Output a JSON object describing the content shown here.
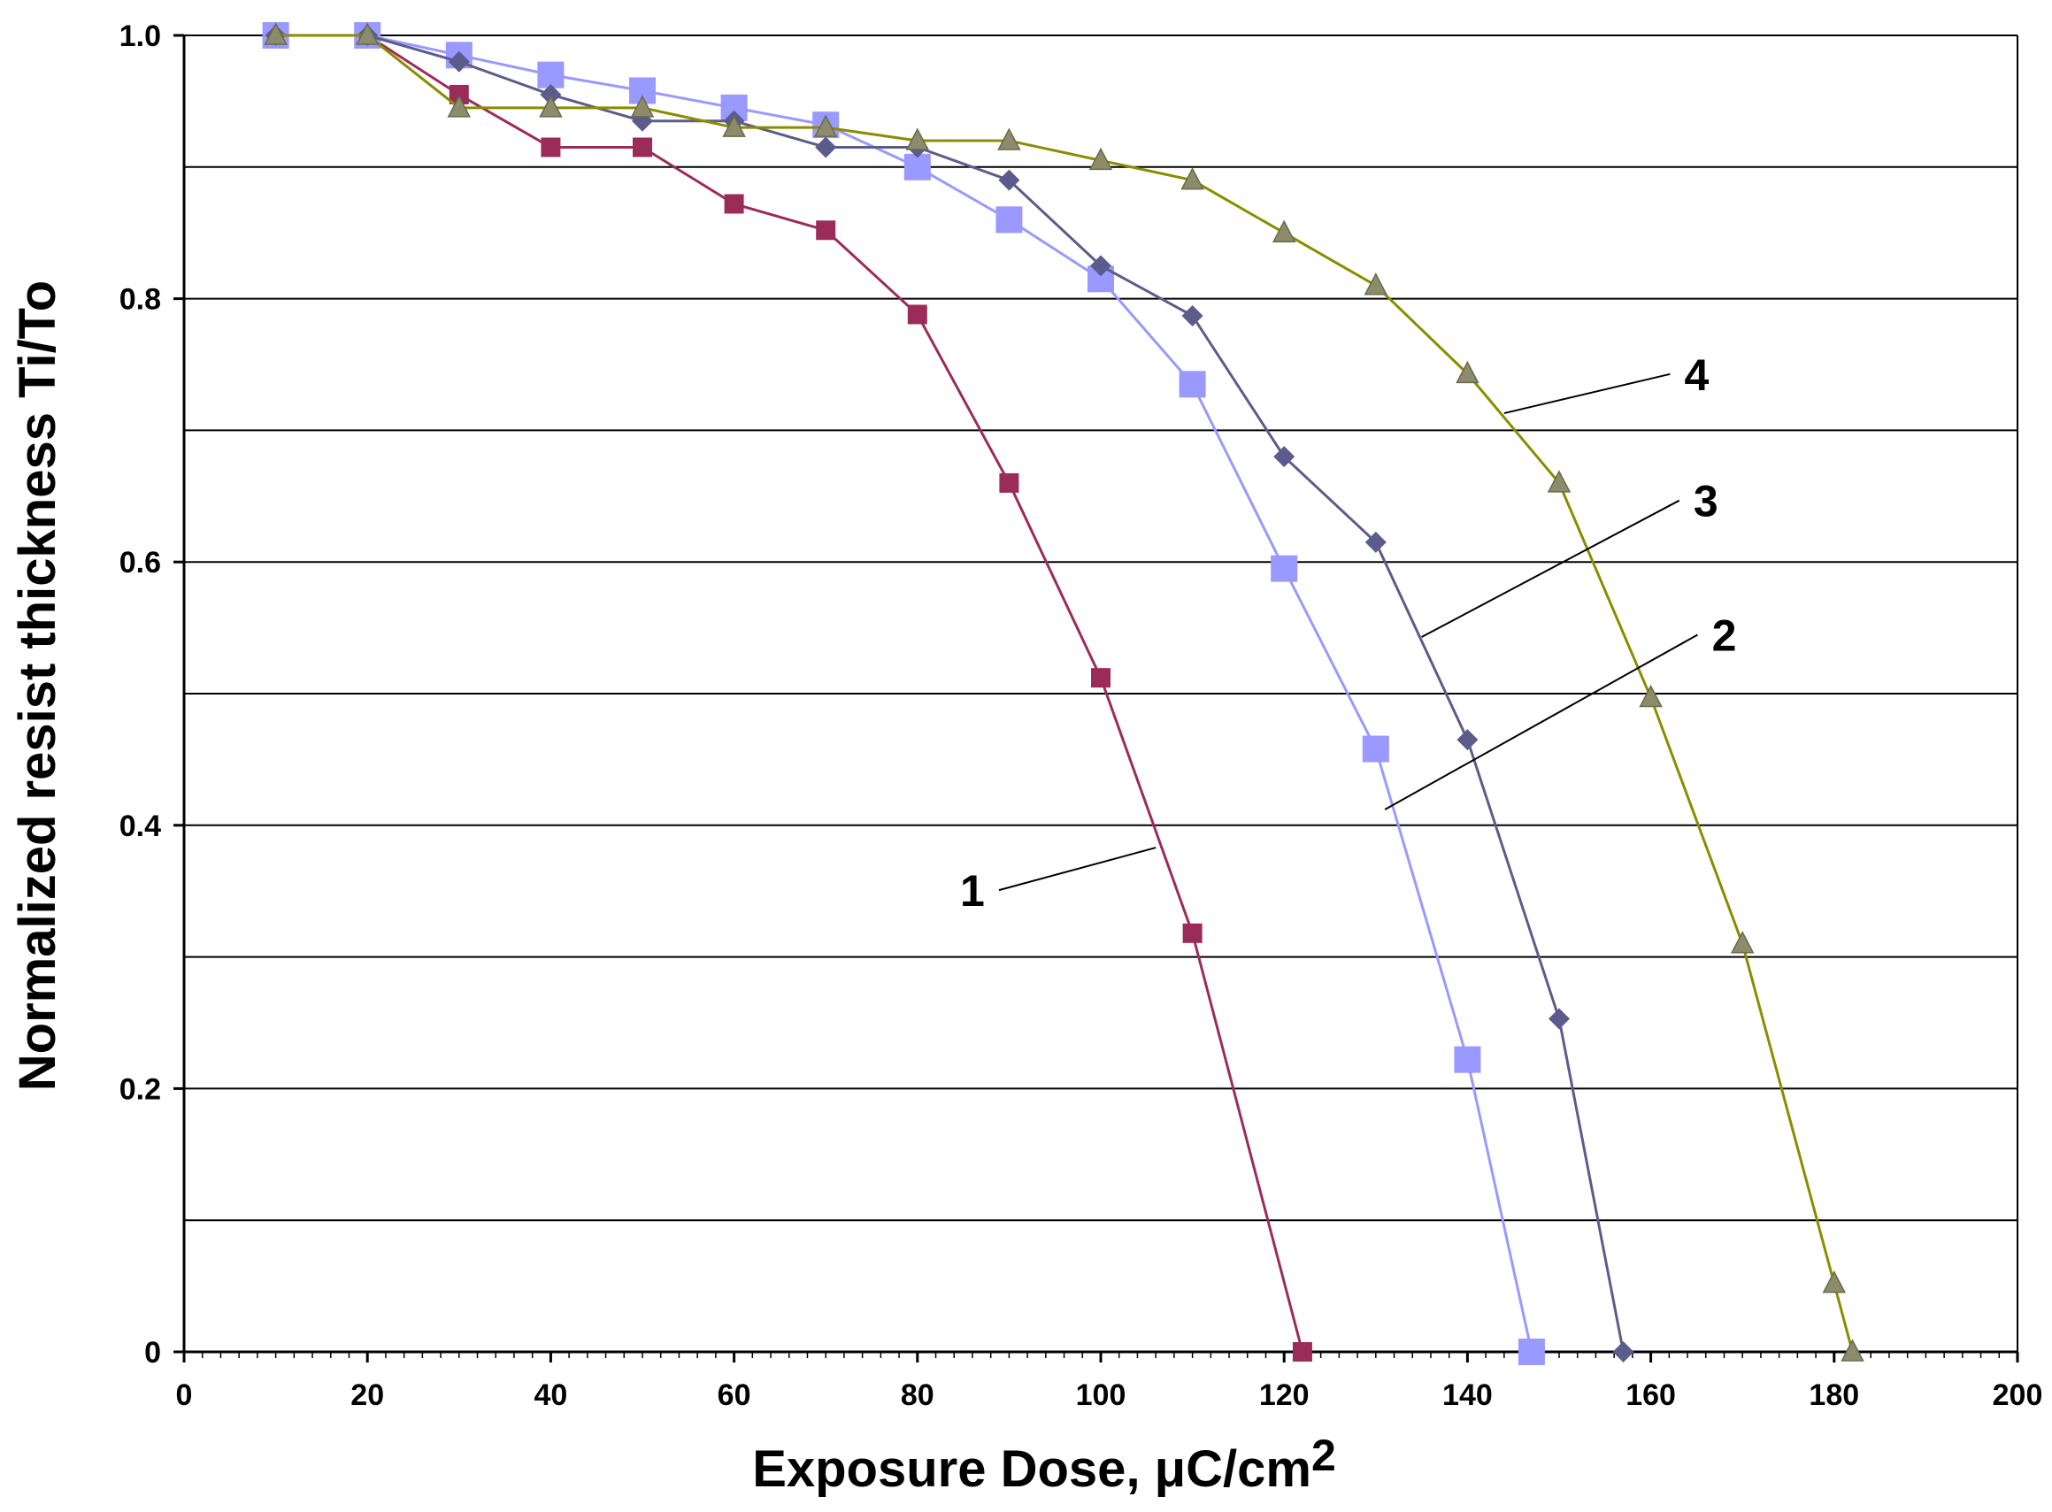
{
  "chart_data": {
    "type": "line",
    "title": "",
    "xlabel": "Exposure Dose, μC/cm",
    "xlabel_superscript": "2",
    "ylabel": "Normalized resist thickness Ti/To",
    "xlim": [
      0,
      200
    ],
    "ylim": [
      0,
      1.0
    ],
    "grid": true,
    "x_ticks": [
      "0",
      "20",
      "40",
      "60",
      "80",
      "100",
      "120",
      "140",
      "160",
      "180",
      "200"
    ],
    "y_ticks": [
      "0",
      "0.2",
      "0.4",
      "0.6",
      "0.8",
      "1.0"
    ],
    "series": [
      {
        "name": "1",
        "color": "#9b2c5a",
        "marker": "square-small",
        "x": [
          10,
          20,
          30,
          40,
          50,
          60,
          70,
          80,
          90,
          100,
          110,
          122
        ],
        "y": [
          1.0,
          1.0,
          0.955,
          0.915,
          0.915,
          0.872,
          0.852,
          0.788,
          0.66,
          0.512,
          0.318,
          0.0
        ],
        "label_anchor": [
          106,
          0.383
        ]
      },
      {
        "name": "2",
        "color": "#9999ff",
        "marker": "square-large",
        "x": [
          10,
          20,
          30,
          40,
          50,
          60,
          70,
          80,
          90,
          100,
          110,
          120,
          130,
          140,
          147
        ],
        "y": [
          1.0,
          1.0,
          0.985,
          0.97,
          0.958,
          0.945,
          0.932,
          0.9,
          0.86,
          0.815,
          0.735,
          0.595,
          0.458,
          0.222,
          0.0
        ],
        "label_anchor": [
          131,
          0.412
        ]
      },
      {
        "name": "3",
        "color": "#5c5c8c",
        "marker": "diamond",
        "x": [
          10,
          20,
          30,
          40,
          50,
          60,
          70,
          80,
          90,
          100,
          110,
          120,
          130,
          140,
          150,
          157
        ],
        "y": [
          1.0,
          1.0,
          0.98,
          0.955,
          0.935,
          0.935,
          0.915,
          0.915,
          0.89,
          0.825,
          0.787,
          0.68,
          0.615,
          0.465,
          0.253,
          0.0
        ],
        "label_anchor": [
          135,
          0.543
        ]
      },
      {
        "name": "4",
        "color": "#8c8c00",
        "marker": "triangle",
        "x": [
          10,
          20,
          30,
          40,
          50,
          60,
          70,
          80,
          90,
          100,
          110,
          120,
          130,
          140,
          150,
          160,
          170,
          180,
          182
        ],
        "y": [
          1.0,
          1.0,
          0.945,
          0.945,
          0.945,
          0.93,
          0.93,
          0.92,
          0.92,
          0.905,
          0.89,
          0.85,
          0.81,
          0.743,
          0.66,
          0.497,
          0.31,
          0.052,
          0.0
        ],
        "label_anchor": [
          144,
          0.713
        ]
      }
    ],
    "curve_labels": [
      {
        "text": "1",
        "x": 86,
        "y": 0.344
      },
      {
        "text": "2",
        "x": 168,
        "y": 0.538
      },
      {
        "text": "3",
        "x": 166,
        "y": 0.64
      },
      {
        "text": "4",
        "x": 165,
        "y": 0.736
      }
    ]
  }
}
